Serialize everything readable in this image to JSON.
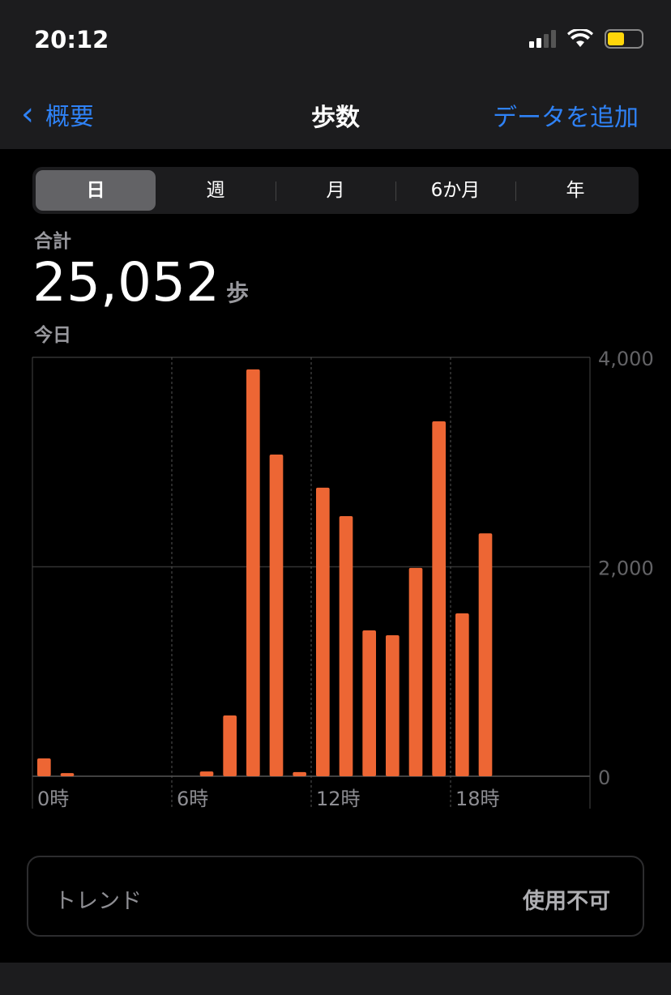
{
  "status": {
    "time": "20:12"
  },
  "nav": {
    "back": "概要",
    "title": "歩数",
    "add": "データを追加"
  },
  "tabs": [
    "日",
    "週",
    "月",
    "6か月",
    "年"
  ],
  "selected_tab": 0,
  "summary": {
    "label": "合計",
    "value": "25,052",
    "unit": "歩",
    "period": "今日"
  },
  "colors": {
    "accent": "#2f82f6",
    "bar": "#ed6634"
  },
  "chart_data": {
    "type": "bar",
    "x": [
      0,
      1,
      7,
      8,
      9,
      10,
      11,
      12,
      13,
      14,
      15,
      16,
      17,
      18,
      19
    ],
    "values": [
      170,
      30,
      45,
      580,
      3885,
      3072,
      40,
      2755,
      2484,
      1393,
      1346,
      1989,
      3389,
      1555,
      2319
    ],
    "ylim": [
      0,
      4000
    ],
    "y_ticks": [
      "0",
      "2,000",
      "4,000"
    ],
    "x_ticks": [
      "0時",
      "6時",
      "12時",
      "18時"
    ],
    "grid": true
  },
  "trend": {
    "label": "トレンド",
    "value": "使用不可"
  }
}
